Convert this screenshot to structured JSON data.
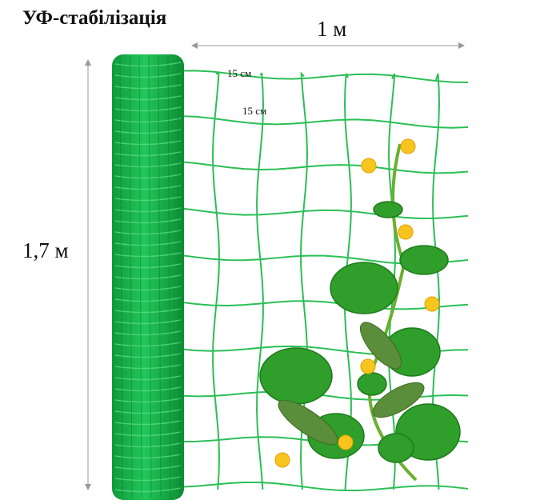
{
  "title": "УФ-стабілізація",
  "width_label": "1 м",
  "height_label": "1,7 м",
  "mesh_labels": [
    "15 см",
    "15 см"
  ]
}
